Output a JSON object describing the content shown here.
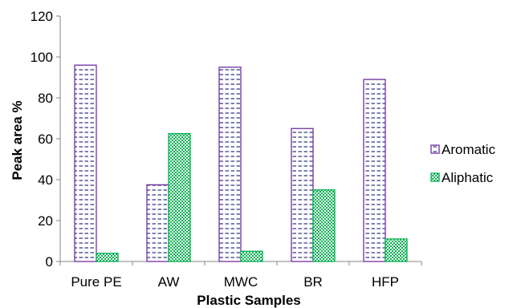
{
  "chart_data": {
    "type": "bar",
    "title": "",
    "xlabel": "Plastic Samples",
    "ylabel": "Peak area %",
    "categories": [
      "Pure PE",
      "AW",
      "MWC",
      "BR",
      "HFP"
    ],
    "series": [
      {
        "name": "Aromatic",
        "values": [
          96,
          37.5,
          95,
          65,
          89
        ],
        "color": "#7030a0"
      },
      {
        "name": "Aliphatic",
        "values": [
          4,
          62.5,
          5,
          35,
          11
        ],
        "color": "#00b050"
      }
    ],
    "ylim": [
      0,
      120
    ],
    "yticks": [
      0,
      20,
      40,
      60,
      80,
      100,
      120
    ],
    "grid": false,
    "legend_position": "right"
  }
}
